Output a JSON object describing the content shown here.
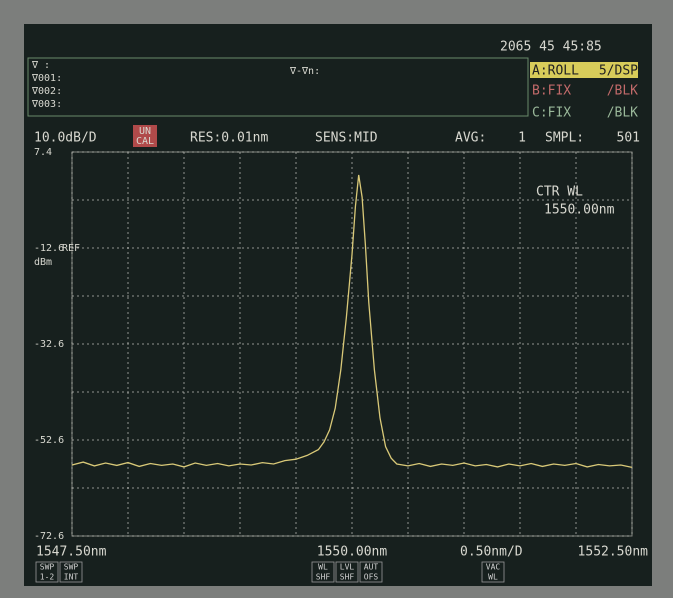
{
  "screen": {
    "clock": "2065 45 45:85",
    "markers": [
      "∇ :",
      "∇001:",
      "∇002:",
      "∇003:"
    ],
    "marker_diff": "∇-∇n:",
    "traces": [
      [
        "A:ROLL",
        "5/DSP"
      ],
      [
        "B:FIX",
        "/BLK"
      ],
      [
        "C:FIX",
        "/BLK"
      ]
    ],
    "uncal": [
      "UN",
      "CAL"
    ],
    "res": "RES:0.01nm",
    "sens": "SENS:MID",
    "avg_label": "AVG:",
    "avg": "1",
    "smpl_label": "SMPL:",
    "smpl": "501",
    "ref": "REF",
    "unit": "dBm",
    "buttons": [
      [
        "SWP",
        "1-2"
      ],
      [
        "SWP",
        "INT"
      ],
      [
        "WL",
        "SHF"
      ],
      [
        "LVL",
        "SHF"
      ],
      [
        "AUT",
        "OFS"
      ],
      [
        "VAC",
        "WL"
      ]
    ]
  },
  "chart_data": {
    "type": "line",
    "color": "#d9c978",
    "annotations": [
      "CTR WL",
      "1550.00nm"
    ],
    "y_per_div": {
      "value": 10,
      "label": "10.0dB/D"
    },
    "x_per_div": {
      "value": 0.5,
      "label": "0.50nm/D"
    },
    "xlim": [
      1547.5,
      1552.5
    ],
    "xticks": [
      {
        "value": 1547.5,
        "label": "1547.50nm"
      },
      {
        "value": 1550,
        "label": "1550.00nm"
      },
      {
        "value": 1552.5,
        "label": "1552.50nm"
      }
    ],
    "ylim": [
      -72.6,
      7.4
    ],
    "yticks": [
      7.4,
      -12.6,
      -32.6,
      -52.6,
      -72.6
    ],
    "grid": true,
    "x": [
      1547.5,
      1547.6,
      1547.7,
      1547.8,
      1547.9,
      1548.0,
      1548.1,
      1548.2,
      1548.3,
      1548.4,
      1548.5,
      1548.6,
      1548.7,
      1548.8,
      1548.9,
      1549.0,
      1549.1,
      1549.2,
      1549.3,
      1549.4,
      1549.5,
      1549.6,
      1549.7,
      1549.75,
      1549.8,
      1549.85,
      1549.9,
      1549.95,
      1550.0,
      1550.03,
      1550.06,
      1550.09,
      1550.12,
      1550.15,
      1550.2,
      1550.25,
      1550.3,
      1550.35,
      1550.4,
      1550.5,
      1550.6,
      1550.7,
      1550.8,
      1550.9,
      1551.0,
      1551.1,
      1551.2,
      1551.3,
      1551.4,
      1551.5,
      1551.6,
      1551.7,
      1551.8,
      1551.9,
      1552.0,
      1552.1,
      1552.2,
      1552.3,
      1552.4,
      1552.5
    ],
    "values": [
      -57.8,
      -57.2,
      -58.0,
      -57.4,
      -57.9,
      -57.3,
      -58.1,
      -57.5,
      -57.9,
      -57.6,
      -58.2,
      -57.4,
      -57.9,
      -57.5,
      -58.0,
      -57.6,
      -57.8,
      -57.3,
      -57.6,
      -56.9,
      -56.6,
      -55.8,
      -54.6,
      -53.0,
      -50.5,
      -46,
      -38,
      -27,
      -14,
      -4,
      2.6,
      -2,
      -12,
      -24,
      -38,
      -48,
      -54,
      -56.4,
      -57.6,
      -58.0,
      -57.5,
      -58.1,
      -57.6,
      -57.9,
      -57.4,
      -58.0,
      -57.7,
      -58.2,
      -57.6,
      -58.0,
      -57.5,
      -58.1,
      -57.6,
      -57.9,
      -57.5,
      -58.2,
      -57.7,
      -58.0,
      -57.8,
      -58.3
    ]
  }
}
